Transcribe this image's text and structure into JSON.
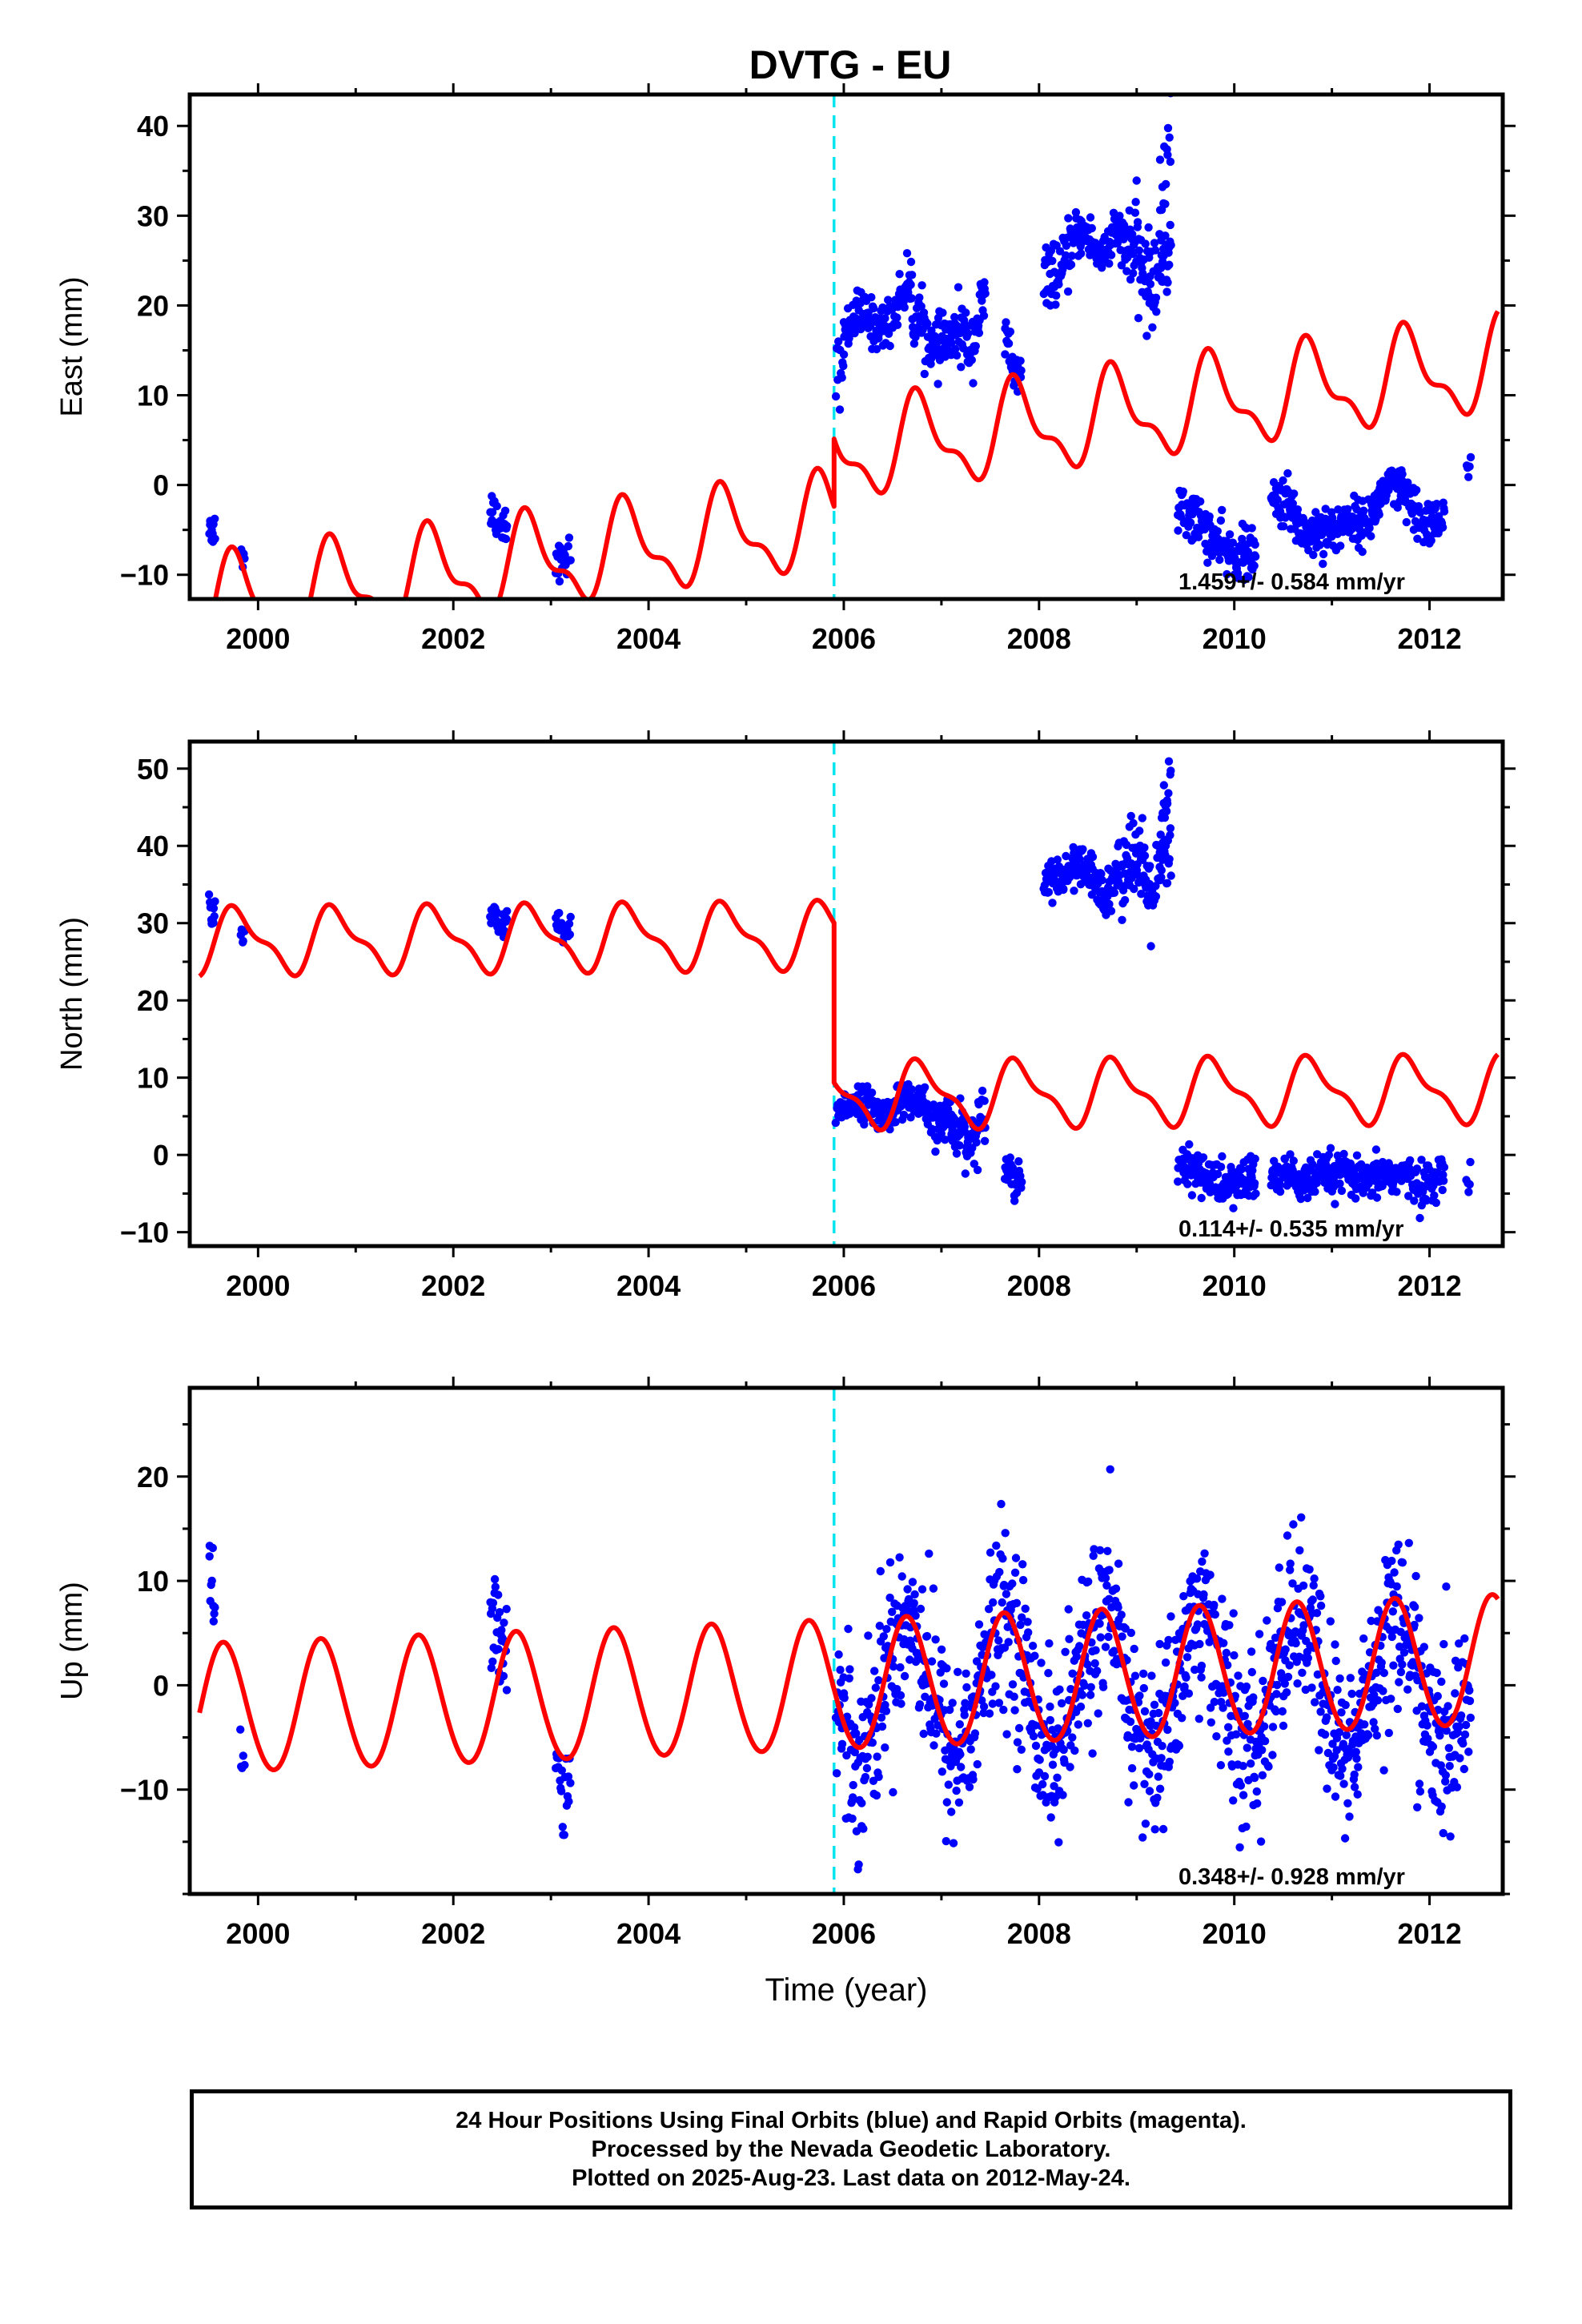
{
  "title": "DVTG - EU",
  "colors": {
    "data": "#0000ff",
    "model": "#ff0000",
    "step": "#00e5ee",
    "frame": "#000000"
  },
  "footer": {
    "line1": "24 Hour Positions Using Final Orbits (blue) and Rapid Orbits (magenta).",
    "line2": "Processed by the Nevada Geodetic Laboratory.",
    "line3": "Plotted on 2025-Aug-23. Last data on 2012-May-24."
  },
  "chart_data": [
    {
      "type": "scatter",
      "name": "east",
      "ylabel": "East (mm)",
      "xlabel": "",
      "xlim": [
        1999.3,
        2012.75
      ],
      "ylim": [
        -12.7,
        43.5
      ],
      "xticks": [
        2000,
        2002,
        2004,
        2006,
        2008,
        2010,
        2012
      ],
      "yticks": [
        -10,
        0,
        10,
        20,
        30,
        40
      ],
      "ytick_labels": [
        "−10",
        "0",
        "10",
        "20",
        "30",
        "40"
      ],
      "step_epoch": 2005.9,
      "rate_text": "1.459+/- 0.584 mm/yr",
      "data_segments": [
        {
          "x0": 1999.5,
          "x1": 1999.56,
          "m0": -4.5,
          "m1": -5.5,
          "amp": 0.8,
          "noise": 0.9,
          "n": 12
        },
        {
          "x0": 1999.82,
          "x1": 1999.86,
          "m0": -8.0,
          "m1": -8.0,
          "amp": 0.3,
          "noise": 0.6,
          "n": 5
        },
        {
          "x0": 2002.38,
          "x1": 2002.55,
          "m0": -3.0,
          "m1": -4.5,
          "amp": 0.6,
          "noise": 1.2,
          "n": 30
        },
        {
          "x0": 2003.05,
          "x1": 2003.2,
          "m0": -9.0,
          "m1": -8.0,
          "amp": 0.5,
          "noise": 1.0,
          "n": 20
        },
        {
          "x0": 2005.92,
          "x1": 2006.0,
          "m0": 12.0,
          "m1": 14.0,
          "amp": 0.8,
          "noise": 1.8,
          "n": 12
        },
        {
          "x0": 2006.0,
          "x1": 2006.7,
          "m0": 16.5,
          "m1": 21.0,
          "amp": 1.5,
          "noise": 1.3,
          "n": 130
        },
        {
          "x0": 2006.7,
          "x1": 2007.1,
          "m0": 18.0,
          "m1": 15.0,
          "amp": 1.2,
          "noise": 1.5,
          "n": 75
        },
        {
          "x0": 2007.1,
          "x1": 2007.45,
          "m0": 15.0,
          "m1": 19.0,
          "amp": 1.5,
          "noise": 1.7,
          "n": 65
        },
        {
          "x0": 2007.65,
          "x1": 2007.82,
          "m0": 16.0,
          "m1": 11.0,
          "amp": 0.8,
          "noise": 1.4,
          "n": 30
        },
        {
          "x0": 2008.05,
          "x1": 2008.35,
          "m0": 22.0,
          "m1": 26.0,
          "amp": 1.0,
          "noise": 1.6,
          "n": 50
        },
        {
          "x0": 2008.35,
          "x1": 2008.85,
          "m0": 27.0,
          "m1": 27.0,
          "amp": 1.2,
          "noise": 1.3,
          "n": 95
        },
        {
          "x0": 2008.85,
          "x1": 2009.35,
          "m0": 25.0,
          "m1": 24.0,
          "amp": 2.0,
          "noise": 2.6,
          "n": 100
        },
        {
          "x0": 2009.24,
          "x1": 2009.35,
          "m0": 30.0,
          "m1": 40.0,
          "amp": 0.5,
          "noise": 2.5,
          "n": 14
        },
        {
          "x0": 2009.42,
          "x1": 2010.22,
          "m0": -3.0,
          "m1": -9.0,
          "amp": 0.8,
          "noise": 1.4,
          "n": 140
        },
        {
          "x0": 2010.38,
          "x1": 2011.0,
          "m0": -2.0,
          "m1": -6.0,
          "amp": 1.0,
          "noise": 1.4,
          "n": 120
        },
        {
          "x0": 2011.0,
          "x1": 2011.6,
          "m0": -6.0,
          "m1": -1.0,
          "amp": 1.0,
          "noise": 1.2,
          "n": 115
        },
        {
          "x0": 2011.6,
          "x1": 2012.15,
          "m0": -1.0,
          "m1": -5.0,
          "amp": 1.0,
          "noise": 1.4,
          "n": 100
        },
        {
          "x0": 2012.38,
          "x1": 2012.42,
          "m0": 1.5,
          "m1": 1.5,
          "amp": 0.5,
          "noise": 0.8,
          "n": 5
        }
      ],
      "model": {
        "pre_mean_at_x0": -13.6,
        "x0": 1999.4,
        "slope": 1.459,
        "pre_offset": 0.0,
        "post_base": 3.4,
        "annual_amp": 4.6,
        "annual_phase": 0.18,
        "semi_amp": 2.0,
        "semi_phase": 0.1,
        "x_end": 2012.7
      }
    },
    {
      "type": "scatter",
      "name": "north",
      "ylabel": "North (mm)",
      "xlabel": "",
      "xlim": [
        1999.3,
        2012.75
      ],
      "ylim": [
        -11.8,
        53.5
      ],
      "xticks": [
        2000,
        2002,
        2004,
        2006,
        2008,
        2010,
        2012
      ],
      "yticks": [
        -10,
        0,
        10,
        20,
        30,
        40,
        50
      ],
      "ytick_labels": [
        "−10",
        "0",
        "10",
        "20",
        "30",
        "40",
        "50"
      ],
      "step_epoch": 2005.9,
      "rate_text": "0.114+/- 0.535 mm/yr",
      "data_segments": [
        {
          "x0": 1999.5,
          "x1": 1999.56,
          "m0": 32.0,
          "m1": 31.5,
          "amp": 0.5,
          "noise": 0.8,
          "n": 10
        },
        {
          "x0": 1999.82,
          "x1": 1999.86,
          "m0": 29.0,
          "m1": 28.0,
          "amp": 0.3,
          "noise": 0.6,
          "n": 5
        },
        {
          "x0": 2002.38,
          "x1": 2002.55,
          "m0": 30.5,
          "m1": 29.5,
          "amp": 0.6,
          "noise": 0.9,
          "n": 30
        },
        {
          "x0": 2003.05,
          "x1": 2003.2,
          "m0": 29.5,
          "m1": 28.5,
          "amp": 0.5,
          "noise": 0.8,
          "n": 20
        },
        {
          "x0": 2005.92,
          "x1": 2006.0,
          "m0": 5.0,
          "m1": 5.5,
          "amp": 0.5,
          "noise": 0.9,
          "n": 10
        },
        {
          "x0": 2006.0,
          "x1": 2006.7,
          "m0": 6.0,
          "m1": 6.5,
          "amp": 1.0,
          "noise": 1.1,
          "n": 130
        },
        {
          "x0": 2006.7,
          "x1": 2007.1,
          "m0": 6.0,
          "m1": 4.0,
          "amp": 1.0,
          "noise": 1.3,
          "n": 75
        },
        {
          "x0": 2007.1,
          "x1": 2007.45,
          "m0": 2.0,
          "m1": 4.0,
          "amp": 1.5,
          "noise": 1.7,
          "n": 65
        },
        {
          "x0": 2007.65,
          "x1": 2007.82,
          "m0": -1.0,
          "m1": -4.0,
          "amp": 0.8,
          "noise": 1.2,
          "n": 30
        },
        {
          "x0": 2008.05,
          "x1": 2008.35,
          "m0": 35.0,
          "m1": 37.0,
          "amp": 0.8,
          "noise": 1.2,
          "n": 50
        },
        {
          "x0": 2008.35,
          "x1": 2008.85,
          "m0": 36.0,
          "m1": 35.0,
          "amp": 1.2,
          "noise": 1.6,
          "n": 95
        },
        {
          "x0": 2008.85,
          "x1": 2009.35,
          "m0": 37.0,
          "m1": 36.0,
          "amp": 2.5,
          "noise": 2.8,
          "n": 100
        },
        {
          "x0": 2009.24,
          "x1": 2009.35,
          "m0": 40.0,
          "m1": 50.0,
          "amp": 0.5,
          "noise": 2.2,
          "n": 14
        },
        {
          "x0": 2009.42,
          "x1": 2010.22,
          "m0": -2.0,
          "m1": -4.0,
          "amp": 0.8,
          "noise": 1.5,
          "n": 140
        },
        {
          "x0": 2010.38,
          "x1": 2011.0,
          "m0": -3.0,
          "m1": -3.0,
          "amp": 0.6,
          "noise": 1.3,
          "n": 120
        },
        {
          "x0": 2011.0,
          "x1": 2011.6,
          "m0": -3.0,
          "m1": -3.0,
          "amp": 0.6,
          "noise": 1.2,
          "n": 115
        },
        {
          "x0": 2011.6,
          "x1": 2012.15,
          "m0": -3.0,
          "m1": -3.5,
          "amp": 0.6,
          "noise": 1.3,
          "n": 100
        },
        {
          "x0": 2012.38,
          "x1": 2012.42,
          "m0": -3.0,
          "m1": -3.0,
          "amp": 0.4,
          "noise": 0.8,
          "n": 5
        }
      ],
      "model": {
        "pre_mean_at_x0": 27.6,
        "x0": 1999.4,
        "slope": 0.114,
        "pre_offset": 0.0,
        "post_base": 7.7,
        "annual_amp": 3.8,
        "annual_phase": 0.2,
        "semi_amp": 1.5,
        "semi_phase": 0.08,
        "x_end": 2012.7
      }
    },
    {
      "type": "scatter",
      "name": "up",
      "ylabel": "Up (mm)",
      "xlabel": "Time (year)",
      "xlim": [
        1999.3,
        2012.75
      ],
      "ylim": [
        -20.0,
        28.5
      ],
      "xticks": [
        2000,
        2002,
        2004,
        2006,
        2008,
        2010,
        2012
      ],
      "yticks": [
        -10,
        0,
        10,
        20
      ],
      "ytick_labels": [
        "−10",
        "0",
        "10",
        "20"
      ],
      "step_epoch": 2005.9,
      "rate_text": "0.348+/- 0.928 mm/yr",
      "data_segments": [
        {
          "x0": 1999.5,
          "x1": 1999.56,
          "m0": 12.0,
          "m1": 7.0,
          "amp": 0.5,
          "noise": 2.5,
          "n": 10
        },
        {
          "x0": 1999.82,
          "x1": 1999.86,
          "m0": -5.0,
          "m1": -8.0,
          "amp": 0.5,
          "noise": 2.5,
          "n": 5
        },
        {
          "x0": 2002.38,
          "x1": 2002.55,
          "m0": 8.0,
          "m1": 3.0,
          "amp": 1.0,
          "noise": 2.5,
          "n": 30
        },
        {
          "x0": 2003.05,
          "x1": 2003.2,
          "m0": -9.0,
          "m1": -10.0,
          "amp": 0.5,
          "noise": 2.3,
          "n": 20
        },
        {
          "x0": 2005.92,
          "x1": 2012.42,
          "m0": 0.0,
          "m1": 0.0,
          "amp": 6.5,
          "noise": 4.2,
          "n": 1200,
          "annual": true,
          "phase": 0.05
        }
      ],
      "model": {
        "pre_mean_at_x0": -2.4,
        "x0": 1999.4,
        "slope": 0.348,
        "pre_offset": 0.0,
        "post_base": -0.1,
        "annual_amp": 6.2,
        "annual_phase": 0.05,
        "semi_amp": 0.3,
        "semi_phase": 0.0,
        "x_end": 2012.7
      }
    }
  ]
}
